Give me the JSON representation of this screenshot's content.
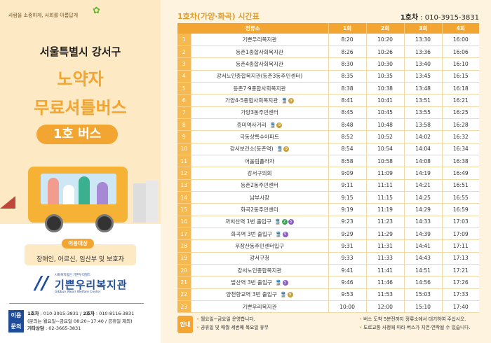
{
  "left": {
    "slogan": "사람을 소중하게, 사회를 아름답게",
    "region": "서울특별시 강서구",
    "title_line1": "노약자",
    "title_line2": "무료셔틀버스",
    "bus_number": "1호 버스",
    "target_label": "이용대상",
    "target_text": "장애인, 어르신, 임산부 및 보호자",
    "logo": {
      "sub": "사회복지법인 기쁜우리월드",
      "name": "기쁜우리복지관",
      "en": "Gibbun Woori Welfare Center"
    },
    "inquiry": {
      "badge": "이용문의",
      "line1_bus1_label": "1호차",
      "line1_bus1_phone": " : 010-3915-3831 / ",
      "line1_bus2_label": "2호차",
      "line1_bus2_phone": " : 010-8116-3831",
      "line2": "(문의는 월요일~금요일 08:20~17:40 / 공휴일 제외)",
      "line3_label": "기타상담",
      "line3_phone": " : 02-3665-3831"
    }
  },
  "timetable": {
    "title": "1호차(가양·화곡) 시간표",
    "phone_label": "1호차",
    "phone": " : 010-3915-3831",
    "headers": [
      "정류소",
      "1회",
      "2회",
      "3회",
      "4회"
    ],
    "line_colors": {
      "2": "#3aa655",
      "5": "#8b5fbf",
      "9": "#c9a13a"
    },
    "rows": [
      {
        "no": "1",
        "stop": "기쁜우리복지관",
        "lines": [],
        "times": [
          "8:20",
          "10:20",
          "13:30",
          "16:00"
        ]
      },
      {
        "no": "2",
        "stop": "등촌1종합사회복지관",
        "lines": [],
        "times": [
          "8:26",
          "10:26",
          "13:36",
          "16:06"
        ]
      },
      {
        "no": "3",
        "stop": "등촌4종합사회복지관",
        "lines": [],
        "times": [
          "8:30",
          "10:30",
          "13:40",
          "16:10"
        ]
      },
      {
        "no": "4",
        "stop": "강서노인종합복지관(등촌3동주민센터)",
        "lines": [],
        "times": [
          "8:35",
          "10:35",
          "13:45",
          "16:15"
        ]
      },
      {
        "no": "5",
        "stop": "등촌7·9종합사회복지관",
        "lines": [],
        "times": [
          "8:38",
          "10:38",
          "13:48",
          "16:18"
        ]
      },
      {
        "no": "6",
        "stop": "가양4-5종합사회복지관",
        "lines": [
          "9"
        ],
        "times": [
          "8:41",
          "10:41",
          "13:51",
          "16:21"
        ]
      },
      {
        "no": "7",
        "stop": "가양3동주민센터",
        "lines": [],
        "times": [
          "8:45",
          "10:45",
          "13:55",
          "16:25"
        ]
      },
      {
        "no": "8",
        "stop": "증미역사거리",
        "lines": [
          "9"
        ],
        "times": [
          "8:48",
          "10:48",
          "13:58",
          "16:28"
        ]
      },
      {
        "no": "9",
        "stop": "극동상록수아파트",
        "lines": [],
        "times": [
          "8:52",
          "10:52",
          "14:02",
          "16:32"
        ]
      },
      {
        "no": "10",
        "stop": "강서보건소(등촌역)",
        "lines": [
          "9"
        ],
        "times": [
          "8:54",
          "10:54",
          "14:04",
          "16:34"
        ]
      },
      {
        "no": "11",
        "stop": "어울림플라자",
        "lines": [],
        "times": [
          "8:58",
          "10:58",
          "14:08",
          "16:38"
        ]
      },
      {
        "no": "12",
        "stop": "강서구의회",
        "lines": [],
        "times": [
          "9:09",
          "11:09",
          "14:19",
          "16:49"
        ]
      },
      {
        "no": "13",
        "stop": "등촌2동주민센터",
        "lines": [],
        "times": [
          "9:11",
          "11:11",
          "14:21",
          "16:51"
        ]
      },
      {
        "no": "14",
        "stop": "남부시장",
        "lines": [],
        "times": [
          "9:15",
          "11:15",
          "14:25",
          "16:55"
        ]
      },
      {
        "no": "15",
        "stop": "화곡2동주민센터",
        "lines": [],
        "times": [
          "9:19",
          "11:19",
          "14:29",
          "16:59"
        ]
      },
      {
        "no": "16",
        "stop": "까치산역 1번 출입구",
        "lines": [
          "2",
          "5"
        ],
        "times": [
          "9:23",
          "11:23",
          "14:33",
          "17:03"
        ]
      },
      {
        "no": "17",
        "stop": "화곡역 3번 출입구",
        "lines": [
          "5"
        ],
        "times": [
          "9:29",
          "11:29",
          "14:39",
          "17:09"
        ]
      },
      {
        "no": "18",
        "stop": "우장산동주민센터입구",
        "lines": [],
        "times": [
          "9:31",
          "11:31",
          "14:41",
          "17:11"
        ]
      },
      {
        "no": "19",
        "stop": "강서구청",
        "lines": [],
        "times": [
          "9:33",
          "11:33",
          "14:43",
          "17:13"
        ]
      },
      {
        "no": "20",
        "stop": "강서노인종합복지관",
        "lines": [],
        "times": [
          "9:41",
          "11:41",
          "14:51",
          "17:21"
        ]
      },
      {
        "no": "21",
        "stop": "발산역 3번 출입구",
        "lines": [
          "5"
        ],
        "times": [
          "9:46",
          "11:46",
          "14:56",
          "17:26"
        ]
      },
      {
        "no": "22",
        "stop": "양천향교역 3번 출입구",
        "lines": [
          "9"
        ],
        "times": [
          "9:53",
          "11:53",
          "15:03",
          "17:33"
        ]
      },
      {
        "no": "23",
        "stop": "기쁜우리복지관",
        "lines": [],
        "times": [
          "10:00",
          "12:00",
          "15:10",
          "17:40"
        ]
      }
    ]
  },
  "notice": {
    "badge": "안내",
    "left": [
      "월요일~금요일 운영합니다.",
      "공휴일 및 매월 세번째 목요일 휴무"
    ],
    "right": [
      "버스 도착 5분전까지 정류소에서 대기하여 주십시오.",
      "도로교통 사정에 따라 버스가 지연·연착될 수 있습니다."
    ]
  },
  "colors": {
    "accent": "#f2a531",
    "navy": "#1e4c9a",
    "cream": "#fde9c3"
  }
}
